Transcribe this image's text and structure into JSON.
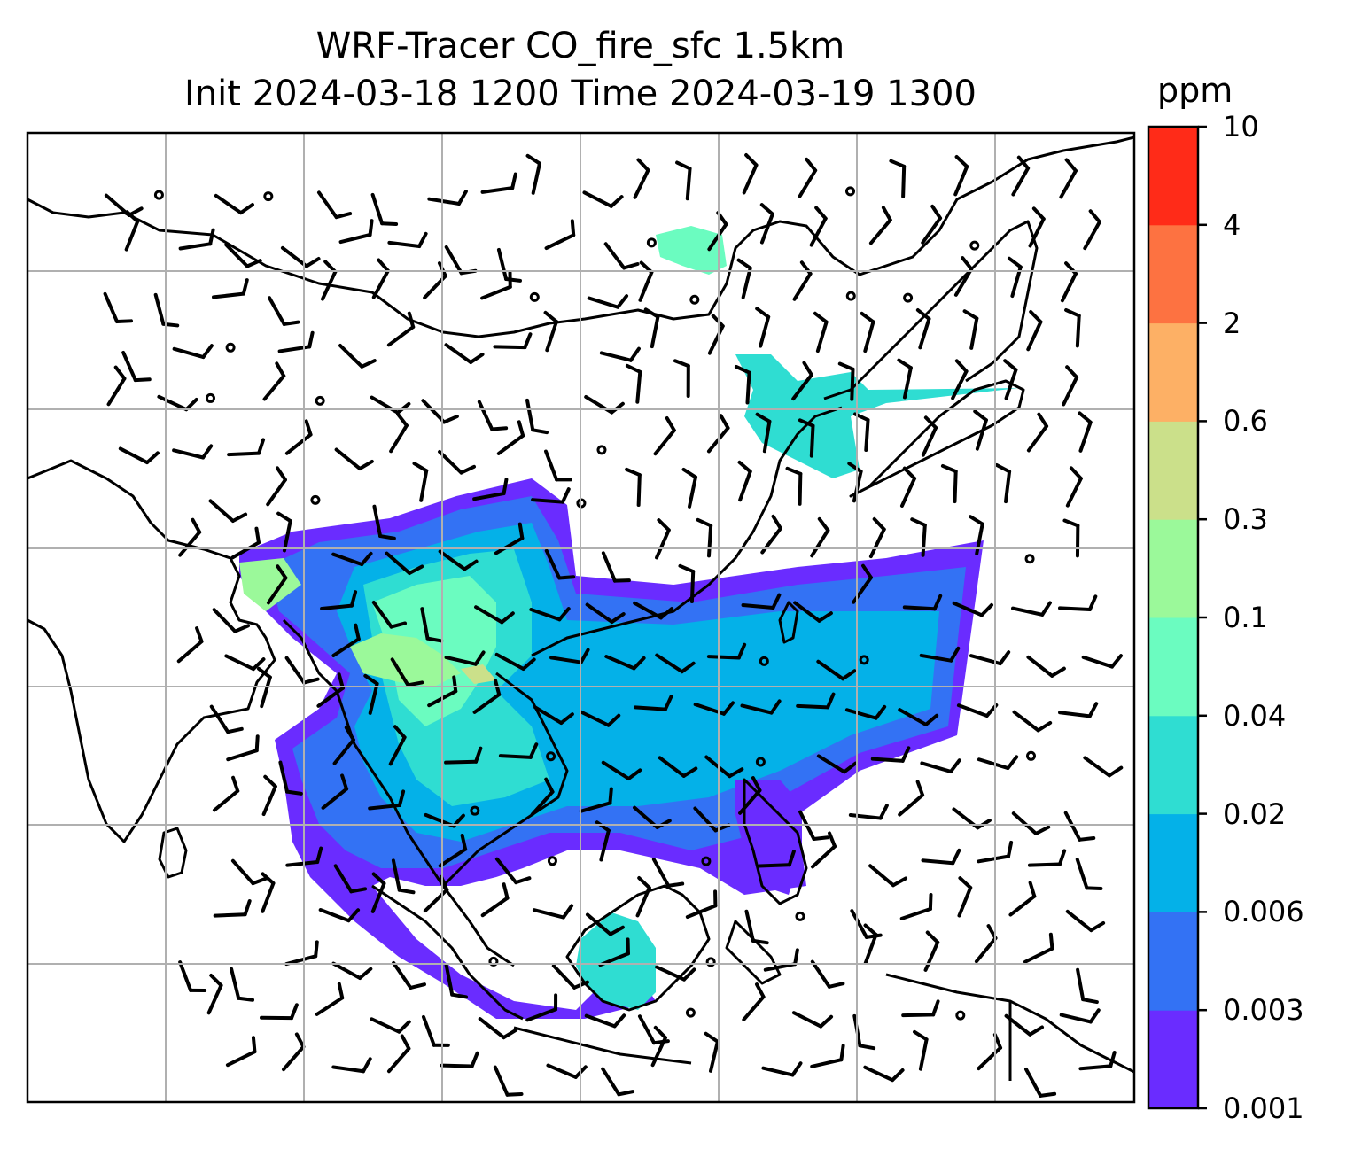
{
  "title": {
    "line1": "WRF-Tracer CO_fire_sfc 1.5km",
    "line2": "Init 2024-03-18 1200 Time 2024-03-19 1300"
  },
  "colorbar": {
    "unit": "ppm",
    "levels": [
      "0.001",
      "0.003",
      "0.006",
      "0.02",
      "0.04",
      "0.1",
      "0.3",
      "0.6",
      "2",
      "4",
      "10"
    ],
    "colors": [
      "#6a2cff",
      "#3372f4",
      "#04b1e8",
      "#2fddd2",
      "#6bfcc0",
      "#9bf99a",
      "#cbe08a",
      "#fdb065",
      "#fd7241",
      "#ff2b18"
    ]
  },
  "map": {
    "gridlines": true,
    "layers": [
      "coastlines",
      "country borders",
      "CO fire tracer filled contours",
      "wind barbs",
      "calm-wind circles"
    ]
  }
}
